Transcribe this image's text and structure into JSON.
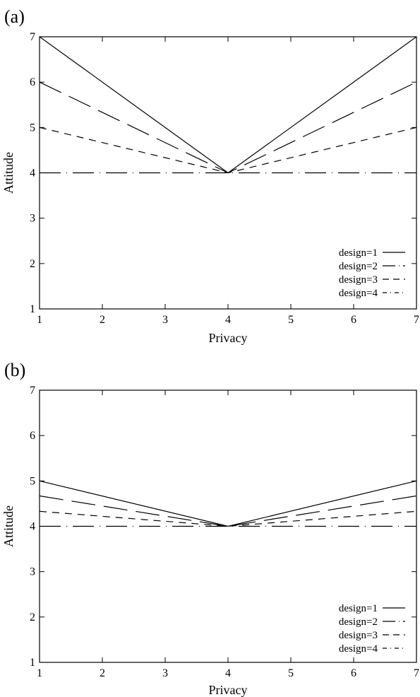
{
  "chart_data": [
    {
      "panel_label": "(a)",
      "type": "line",
      "xlabel": "Privacy",
      "ylabel": "Attitude",
      "xlim": [
        1,
        7
      ],
      "ylim": [
        1,
        7
      ],
      "xticks": [
        1,
        2,
        3,
        4,
        5,
        6,
        7
      ],
      "yticks": [
        1,
        2,
        3,
        4,
        5,
        6,
        7
      ],
      "grid": false,
      "legend_position": "bottom-right",
      "series": [
        {
          "name": "design=1",
          "x": [
            1,
            4,
            7
          ],
          "y": [
            7,
            4,
            7
          ],
          "style": "solid"
        },
        {
          "name": "design=2",
          "x": [
            1,
            4,
            7
          ],
          "y": [
            6,
            4,
            6
          ],
          "style": "long-dash"
        },
        {
          "name": "design=3",
          "x": [
            1,
            4,
            7
          ],
          "y": [
            5,
            4,
            5
          ],
          "style": "short-dash"
        },
        {
          "name": "design=4",
          "x": [
            1,
            4,
            7
          ],
          "y": [
            4,
            4,
            4
          ],
          "style": "dash-dot"
        }
      ]
    },
    {
      "panel_label": "(b)",
      "type": "line",
      "xlabel": "Privacy",
      "ylabel": "Attitude",
      "xlim": [
        1,
        7
      ],
      "ylim": [
        1,
        7
      ],
      "xticks": [
        1,
        2,
        3,
        4,
        5,
        6,
        7
      ],
      "yticks": [
        1,
        2,
        3,
        4,
        5,
        6,
        7
      ],
      "grid": false,
      "legend_position": "bottom-right",
      "series": [
        {
          "name": "design=1",
          "x": [
            1,
            4,
            7
          ],
          "y": [
            5,
            4,
            5
          ],
          "style": "solid"
        },
        {
          "name": "design=2",
          "x": [
            1,
            4,
            7
          ],
          "y": [
            4.67,
            4,
            4.67
          ],
          "style": "long-dash"
        },
        {
          "name": "design=3",
          "x": [
            1,
            4,
            7
          ],
          "y": [
            4.33,
            4,
            4.33
          ],
          "style": "short-dash"
        },
        {
          "name": "design=4",
          "x": [
            1,
            4,
            7
          ],
          "y": [
            4,
            4,
            4
          ],
          "style": "dash-dot"
        }
      ]
    }
  ]
}
